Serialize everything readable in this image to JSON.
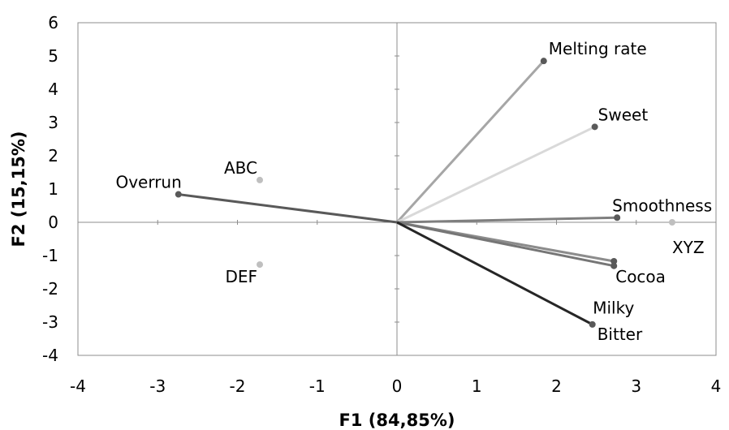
{
  "chart_data": {
    "type": "scatter",
    "subtype": "biplot",
    "xlabel": "F1 (84,85%)",
    "ylabel": "F2 (15,15%)",
    "xlim": [
      -4,
      4
    ],
    "ylim": [
      -4,
      6
    ],
    "xticks": [
      "-4",
      "-3",
      "-2",
      "-1",
      "0",
      "1",
      "2",
      "3",
      "4"
    ],
    "yticks": [
      "-4",
      "-3",
      "-2",
      "-1",
      "0",
      "1",
      "2",
      "3",
      "4",
      "5",
      "6"
    ],
    "grid": false,
    "vectors": [
      {
        "name": "Melting rate",
        "x": 1.84,
        "y": 4.85,
        "color": "#a6a6a6"
      },
      {
        "name": "Sweet",
        "x": 2.48,
        "y": 2.87,
        "color": "#d9d9d9"
      },
      {
        "name": "Smoothness",
        "x": 2.76,
        "y": 0.14,
        "color": "#7f7f7f"
      },
      {
        "name": "Cocoa",
        "x": 2.72,
        "y": -1.17,
        "color": "#8c8c8c"
      },
      {
        "name": "Milky",
        "x": 2.72,
        "y": -1.31,
        "color": "#767676"
      },
      {
        "name": "Bitter",
        "x": 2.45,
        "y": -3.07,
        "color": "#262626"
      },
      {
        "name": "Overrun",
        "x": -2.74,
        "y": 0.84,
        "color": "#595959"
      }
    ],
    "observations": [
      {
        "name": "ABC",
        "x": -1.72,
        "y": 1.27,
        "color": "#bfbfbf"
      },
      {
        "name": "DEF",
        "x": -1.72,
        "y": -1.27,
        "color": "#bfbfbf"
      },
      {
        "name": "XYZ",
        "x": 3.45,
        "y": 0.0,
        "color": "#bfbfbf"
      }
    ]
  }
}
